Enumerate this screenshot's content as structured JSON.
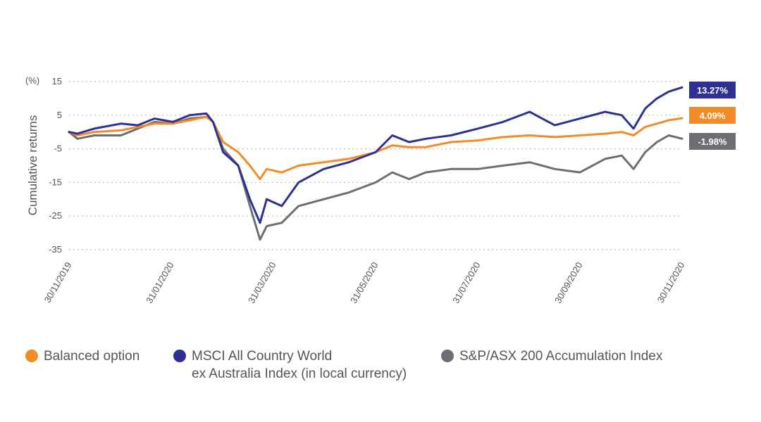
{
  "chart_data": {
    "type": "line",
    "ylabel": "Cumulative returns",
    "yunit": "(%)",
    "y_ticks": [
      15,
      5,
      -5,
      -15,
      -25,
      -35
    ],
    "ylim": [
      -35,
      15
    ],
    "grid": true,
    "x_ticks": [
      "30/11/2019",
      "31/01/2020",
      "31/03/2020",
      "31/05/2020",
      "31/07/2020",
      "30/09/2020",
      "30/11/2020"
    ],
    "x_range": [
      "2019-11-30",
      "2020-11-30"
    ],
    "legend_position": "bottom",
    "series": [
      {
        "name": "Balanced option",
        "color": "#F28C28",
        "end_label": "4.09%",
        "points": [
          [
            "2019-11-30",
            0
          ],
          [
            "2019-12-05",
            -1
          ],
          [
            "2019-12-15",
            0
          ],
          [
            "2019-12-31",
            0.5
          ],
          [
            "2020-01-10",
            1.5
          ],
          [
            "2020-01-20",
            2.5
          ],
          [
            "2020-01-31",
            2.5
          ],
          [
            "2020-02-10",
            3.5
          ],
          [
            "2020-02-20",
            4.5
          ],
          [
            "2020-02-24",
            3
          ],
          [
            "2020-03-01",
            -3
          ],
          [
            "2020-03-10",
            -6
          ],
          [
            "2020-03-17",
            -10
          ],
          [
            "2020-03-23",
            -14
          ],
          [
            "2020-03-27",
            -11
          ],
          [
            "2020-04-05",
            -12
          ],
          [
            "2020-04-15",
            -10
          ],
          [
            "2020-04-30",
            -9
          ],
          [
            "2020-05-15",
            -8
          ],
          [
            "2020-05-31",
            -6
          ],
          [
            "2020-06-10",
            -4
          ],
          [
            "2020-06-20",
            -4.5
          ],
          [
            "2020-06-30",
            -4.5
          ],
          [
            "2020-07-15",
            -3
          ],
          [
            "2020-07-31",
            -2.5
          ],
          [
            "2020-08-15",
            -1.5
          ],
          [
            "2020-08-31",
            -1
          ],
          [
            "2020-09-15",
            -1.5
          ],
          [
            "2020-09-30",
            -1
          ],
          [
            "2020-10-15",
            -0.5
          ],
          [
            "2020-10-25",
            0
          ],
          [
            "2020-11-01",
            -1
          ],
          [
            "2020-11-08",
            1.5
          ],
          [
            "2020-11-15",
            2.5
          ],
          [
            "2020-11-22",
            3.5
          ],
          [
            "2020-11-30",
            4.09
          ]
        ]
      },
      {
        "name": "MSCI All Country World ex Australia Index (in local currency)",
        "name_lines": [
          "MSCI All Country World",
          "ex Australia Index (in local currency)"
        ],
        "color": "#2E3192",
        "end_label": "13.27%",
        "points": [
          [
            "2019-11-30",
            0
          ],
          [
            "2019-12-05",
            -0.5
          ],
          [
            "2019-12-15",
            1
          ],
          [
            "2019-12-31",
            2.5
          ],
          [
            "2020-01-10",
            2
          ],
          [
            "2020-01-20",
            4
          ],
          [
            "2020-01-31",
            3
          ],
          [
            "2020-02-10",
            5
          ],
          [
            "2020-02-20",
            5.5
          ],
          [
            "2020-02-24",
            3
          ],
          [
            "2020-03-01",
            -6
          ],
          [
            "2020-03-10",
            -10
          ],
          [
            "2020-03-17",
            -20
          ],
          [
            "2020-03-23",
            -27
          ],
          [
            "2020-03-27",
            -20
          ],
          [
            "2020-04-05",
            -22
          ],
          [
            "2020-04-15",
            -15
          ],
          [
            "2020-04-30",
            -11
          ],
          [
            "2020-05-15",
            -9
          ],
          [
            "2020-05-31",
            -6
          ],
          [
            "2020-06-10",
            -1
          ],
          [
            "2020-06-20",
            -3
          ],
          [
            "2020-06-30",
            -2
          ],
          [
            "2020-07-15",
            -1
          ],
          [
            "2020-07-31",
            1
          ],
          [
            "2020-08-15",
            3
          ],
          [
            "2020-08-31",
            6
          ],
          [
            "2020-09-15",
            2
          ],
          [
            "2020-09-30",
            4
          ],
          [
            "2020-10-15",
            6
          ],
          [
            "2020-10-25",
            5
          ],
          [
            "2020-11-01",
            1
          ],
          [
            "2020-11-08",
            7
          ],
          [
            "2020-11-15",
            10
          ],
          [
            "2020-11-22",
            12
          ],
          [
            "2020-11-30",
            13.27
          ]
        ]
      },
      {
        "name": "S&P/ASX 200 Accumulation Index",
        "color": "#6D6E71",
        "end_label": "-1.98%",
        "points": [
          [
            "2019-11-30",
            0
          ],
          [
            "2019-12-05",
            -2
          ],
          [
            "2019-12-15",
            -1
          ],
          [
            "2019-12-31",
            -1
          ],
          [
            "2020-01-10",
            1
          ],
          [
            "2020-01-20",
            3
          ],
          [
            "2020-01-31",
            2.5
          ],
          [
            "2020-02-10",
            4
          ],
          [
            "2020-02-20",
            4.5
          ],
          [
            "2020-02-24",
            3
          ],
          [
            "2020-03-01",
            -5
          ],
          [
            "2020-03-10",
            -10
          ],
          [
            "2020-03-17",
            -22
          ],
          [
            "2020-03-23",
            -32
          ],
          [
            "2020-03-27",
            -28
          ],
          [
            "2020-04-05",
            -27
          ],
          [
            "2020-04-15",
            -22
          ],
          [
            "2020-04-30",
            -20
          ],
          [
            "2020-05-15",
            -18
          ],
          [
            "2020-05-31",
            -15
          ],
          [
            "2020-06-10",
            -12
          ],
          [
            "2020-06-20",
            -14
          ],
          [
            "2020-06-30",
            -12
          ],
          [
            "2020-07-15",
            -11
          ],
          [
            "2020-07-31",
            -11
          ],
          [
            "2020-08-15",
            -10
          ],
          [
            "2020-08-31",
            -9
          ],
          [
            "2020-09-15",
            -11
          ],
          [
            "2020-09-30",
            -12
          ],
          [
            "2020-10-15",
            -8
          ],
          [
            "2020-10-25",
            -7
          ],
          [
            "2020-11-01",
            -11
          ],
          [
            "2020-11-08",
            -6
          ],
          [
            "2020-11-15",
            -3
          ],
          [
            "2020-11-22",
            -1
          ],
          [
            "2020-11-30",
            -1.98
          ]
        ]
      }
    ]
  }
}
